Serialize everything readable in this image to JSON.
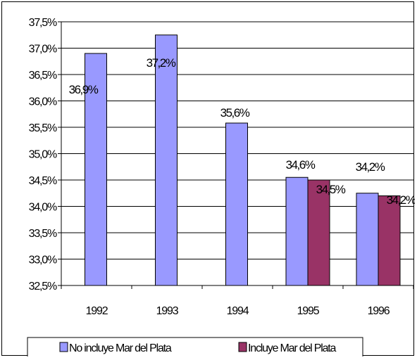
{
  "chart_data": {
    "type": "bar",
    "categories": [
      "1992",
      "1993",
      "1994",
      "1995",
      "1996"
    ],
    "series": [
      {
        "name": "No incluye Mar del Plata",
        "color": "#9999ff",
        "values": [
          36.9,
          37.25,
          35.58,
          34.55,
          34.25
        ],
        "labels": [
          "36,9%",
          "37,2%",
          "35,6%",
          "34,6%",
          "34,2%"
        ]
      },
      {
        "name": "Incluye Mar del Plata",
        "color": "#993366",
        "values": [
          null,
          null,
          null,
          34.5,
          34.2
        ],
        "labels": [
          "",
          "",
          "",
          "34,5%",
          "34,2%"
        ]
      }
    ],
    "ylim": [
      32.5,
      37.5
    ],
    "yticks": [
      32.5,
      33.0,
      33.5,
      34.0,
      34.5,
      35.0,
      35.5,
      36.0,
      36.5,
      37.0,
      37.5
    ],
    "ytick_labels": [
      "32,5%",
      "33,0%",
      "33,5%",
      "34,0%",
      "34,5%",
      "35,0%",
      "35,5%",
      "36,0%",
      "36,5%",
      "37,0%",
      "37,5%"
    ],
    "grid": true,
    "legend_position": "bottom"
  }
}
